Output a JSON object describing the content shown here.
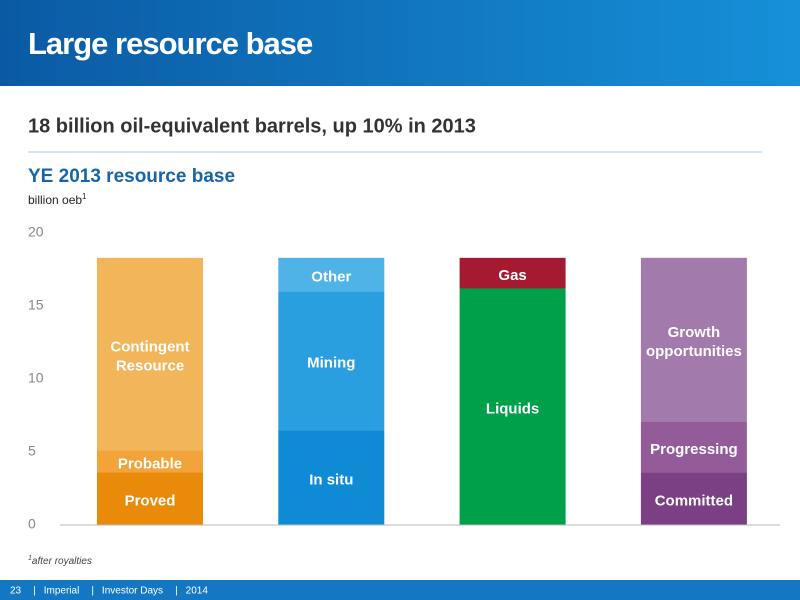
{
  "header": {
    "title": "Large resource base"
  },
  "subtitle": "18 billion oil-equivalent barrels, up 10% in 2013",
  "chart_data": {
    "type": "stacked_bar",
    "title": "YE 2013 resource base",
    "unit_label": "billion oeb",
    "unit_footnote_marker": "1",
    "ylim": [
      0,
      20
    ],
    "yticks": [
      0,
      5,
      10,
      15,
      20
    ],
    "stacks": [
      {
        "segments": [
          {
            "name": [
              "Proved"
            ],
            "color": "#e98a0a",
            "value": 3.6
          },
          {
            "name": [
              "Probable"
            ],
            "color": "#f2a33a",
            "value": 1.5
          },
          {
            "name": [
              "Contingent",
              "Resource"
            ],
            "color": "#f3b55a",
            "value": 13.2
          }
        ]
      },
      {
        "segments": [
          {
            "name": [
              "In situ"
            ],
            "color": "#0f8bd6",
            "value": 6.5
          },
          {
            "name": [
              "Mining"
            ],
            "color": "#2a9fe0",
            "value": 9.5
          },
          {
            "name": [
              "Other"
            ],
            "color": "#4fb3e8",
            "value": 2.3
          }
        ]
      },
      {
        "segments": [
          {
            "name": [
              "Liquids"
            ],
            "color": "#00a04b",
            "value": 16.2
          },
          {
            "name": [
              "Gas"
            ],
            "color": "#a31a31",
            "value": 2.1
          }
        ]
      },
      {
        "segments": [
          {
            "name": [
              "Committed"
            ],
            "color": "#7b4084",
            "value": 3.6
          },
          {
            "name": [
              "Progressing"
            ],
            "color": "#935b99",
            "value": 3.5
          },
          {
            "name": [
              "Growth",
              "opportunities"
            ],
            "color": "#a27aab",
            "value": 11.2
          }
        ]
      }
    ]
  },
  "footnote": {
    "marker": "1",
    "text": "after royalties"
  },
  "footer": {
    "items": [
      "23",
      "Imperial",
      "Investor Days",
      "2014"
    ],
    "separator": "|"
  }
}
